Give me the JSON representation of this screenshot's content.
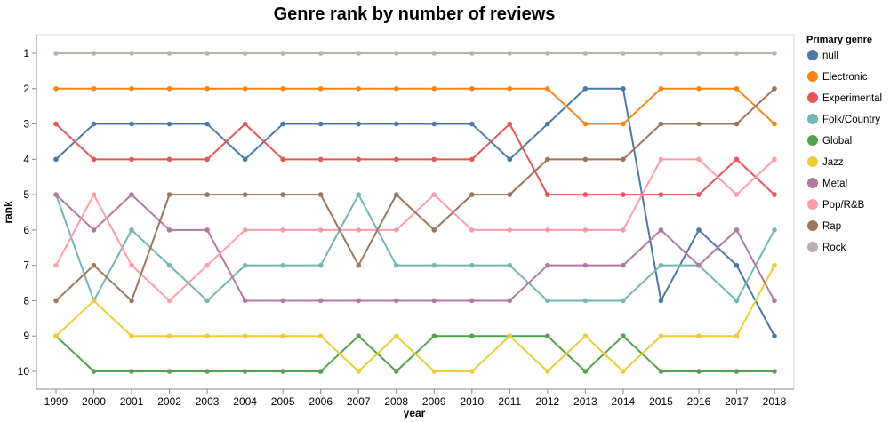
{
  "chart_data": {
    "type": "line",
    "title": "Genre rank by number of reviews",
    "xlabel": "year",
    "ylabel": "rank",
    "x": [
      1999,
      2000,
      2001,
      2002,
      2003,
      2004,
      2005,
      2006,
      2007,
      2008,
      2009,
      2010,
      2011,
      2012,
      2013,
      2014,
      2015,
      2016,
      2017,
      2018
    ],
    "y_ticks": [
      1,
      2,
      3,
      4,
      5,
      6,
      7,
      8,
      9,
      10
    ],
    "y_reversed": true,
    "ylim": [
      1,
      10
    ],
    "grid": false,
    "legend_title": "Primary genre",
    "legend_position": "right",
    "series": [
      {
        "name": "null",
        "color": "#4c78a8",
        "values": [
          4,
          3,
          3,
          3,
          3,
          4,
          3,
          3,
          3,
          3,
          3,
          3,
          4,
          3,
          2,
          2,
          8,
          6,
          7,
          9
        ]
      },
      {
        "name": "Electronic",
        "color": "#f58518",
        "values": [
          2,
          2,
          2,
          2,
          2,
          2,
          2,
          2,
          2,
          2,
          2,
          2,
          2,
          2,
          3,
          3,
          2,
          2,
          2,
          3
        ]
      },
      {
        "name": "Experimental",
        "color": "#e45756",
        "values": [
          3,
          4,
          4,
          4,
          4,
          3,
          4,
          4,
          4,
          4,
          4,
          4,
          3,
          5,
          5,
          5,
          5,
          5,
          4,
          5
        ]
      },
      {
        "name": "Folk/Country",
        "color": "#72b7b2",
        "values": [
          5,
          8,
          6,
          7,
          8,
          7,
          7,
          7,
          5,
          7,
          7,
          7,
          7,
          8,
          8,
          8,
          7,
          7,
          8,
          6
        ]
      },
      {
        "name": "Global",
        "color": "#54a24b",
        "values": [
          9,
          10,
          10,
          10,
          10,
          10,
          10,
          10,
          9,
          10,
          9,
          9,
          9,
          9,
          10,
          9,
          10,
          10,
          10,
          10
        ]
      },
      {
        "name": "Jazz",
        "color": "#eeca3b",
        "values": [
          9,
          8,
          9,
          9,
          9,
          9,
          9,
          9,
          10,
          9,
          10,
          10,
          9,
          10,
          9,
          10,
          9,
          9,
          9,
          7
        ]
      },
      {
        "name": "Metal",
        "color": "#b279a2",
        "values": [
          5,
          6,
          5,
          6,
          6,
          8,
          8,
          8,
          8,
          8,
          8,
          8,
          8,
          7,
          7,
          7,
          6,
          7,
          6,
          8
        ]
      },
      {
        "name": "Pop/R&B",
        "color": "#ff9da6",
        "values": [
          7,
          5,
          7,
          8,
          7,
          6,
          6,
          6,
          6,
          6,
          5,
          6,
          6,
          6,
          6,
          6,
          4,
          4,
          5,
          4
        ]
      },
      {
        "name": "Rap",
        "color": "#9d755d",
        "values": [
          8,
          7,
          8,
          5,
          5,
          5,
          5,
          5,
          7,
          5,
          6,
          5,
          5,
          4,
          4,
          4,
          3,
          3,
          3,
          2
        ]
      },
      {
        "name": "Rock",
        "color": "#bab0ac",
        "values": [
          1,
          1,
          1,
          1,
          1,
          1,
          1,
          1,
          1,
          1,
          1,
          1,
          1,
          1,
          1,
          1,
          1,
          1,
          1,
          1
        ]
      }
    ]
  }
}
